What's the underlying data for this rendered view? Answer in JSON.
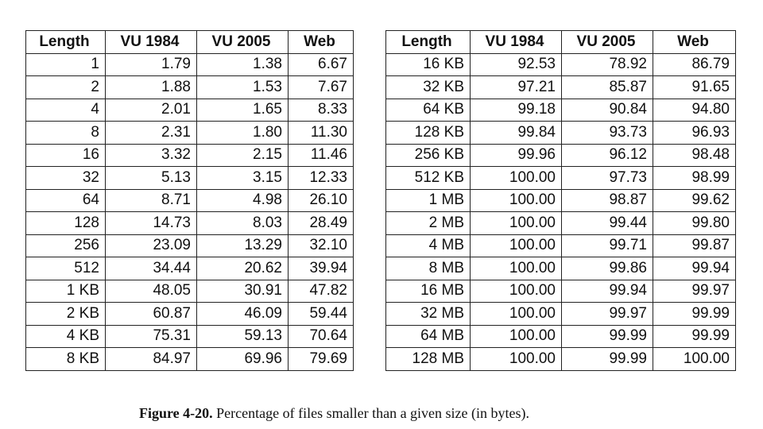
{
  "left_table": {
    "headers": [
      "Length",
      "VU 1984",
      "VU 2005",
      "Web"
    ],
    "rows": [
      [
        "1",
        "1.79",
        "1.38",
        "6.67"
      ],
      [
        "2",
        "1.88",
        "1.53",
        "7.67"
      ],
      [
        "4",
        "2.01",
        "1.65",
        "8.33"
      ],
      [
        "8",
        "2.31",
        "1.80",
        "11.30"
      ],
      [
        "16",
        "3.32",
        "2.15",
        "11.46"
      ],
      [
        "32",
        "5.13",
        "3.15",
        "12.33"
      ],
      [
        "64",
        "8.71",
        "4.98",
        "26.10"
      ],
      [
        "128",
        "14.73",
        "8.03",
        "28.49"
      ],
      [
        "256",
        "23.09",
        "13.29",
        "32.10"
      ],
      [
        "512",
        "34.44",
        "20.62",
        "39.94"
      ],
      [
        "1 KB",
        "48.05",
        "30.91",
        "47.82"
      ],
      [
        "2 KB",
        "60.87",
        "46.09",
        "59.44"
      ],
      [
        "4 KB",
        "75.31",
        "59.13",
        "70.64"
      ],
      [
        "8 KB",
        "84.97",
        "69.96",
        "79.69"
      ]
    ]
  },
  "right_table": {
    "headers": [
      "Length",
      "VU 1984",
      "VU 2005",
      "Web"
    ],
    "rows": [
      [
        "16 KB",
        "92.53",
        "78.92",
        "86.79"
      ],
      [
        "32 KB",
        "97.21",
        "85.87",
        "91.65"
      ],
      [
        "64 KB",
        "99.18",
        "90.84",
        "94.80"
      ],
      [
        "128 KB",
        "99.84",
        "93.73",
        "96.93"
      ],
      [
        "256 KB",
        "99.96",
        "96.12",
        "98.48"
      ],
      [
        "512 KB",
        "100.00",
        "97.73",
        "98.99"
      ],
      [
        "1 MB",
        "100.00",
        "98.87",
        "99.62"
      ],
      [
        "2 MB",
        "100.00",
        "99.44",
        "99.80"
      ],
      [
        "4 MB",
        "100.00",
        "99.71",
        "99.87"
      ],
      [
        "8 MB",
        "100.00",
        "99.86",
        "99.94"
      ],
      [
        "16 MB",
        "100.00",
        "99.94",
        "99.97"
      ],
      [
        "32 MB",
        "100.00",
        "99.97",
        "99.99"
      ],
      [
        "64 MB",
        "100.00",
        "99.99",
        "99.99"
      ],
      [
        "128 MB",
        "100.00",
        "99.99",
        "100.00"
      ]
    ]
  },
  "caption": {
    "figure_label": "Figure 4-20.",
    "text": "Percentage of files smaller than a given size (in bytes)."
  }
}
